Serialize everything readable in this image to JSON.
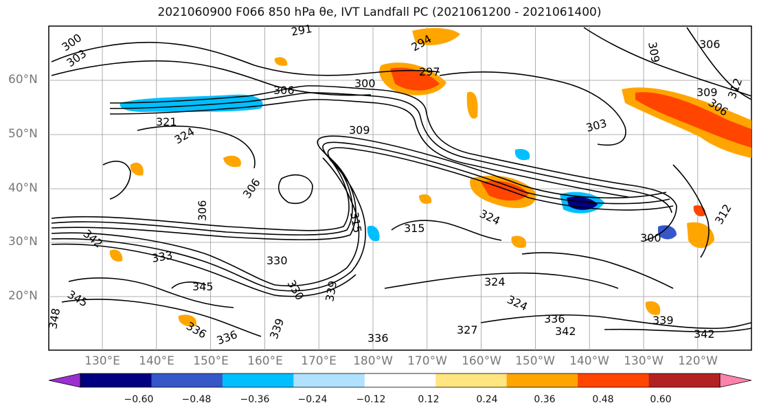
{
  "title": "2021060900 F066 850 hPa θe, IVT Landfall PC (2021061200 - 2021061400)",
  "axes": {
    "lat_labels": [
      "60°N",
      "50°N",
      "40°N",
      "30°N",
      "20°N"
    ],
    "lon_labels": [
      "130°E",
      "140°E",
      "150°E",
      "160°E",
      "170°E",
      "180°W",
      "170°W",
      "160°W",
      "150°W",
      "140°W",
      "130°W",
      "120°W"
    ]
  },
  "contour_labels": [
    "300",
    "303",
    "291",
    "294",
    "297",
    "300",
    "306",
    "309",
    "306",
    "303",
    "309",
    "312",
    "306",
    "321",
    "324",
    "315",
    "309",
    "306",
    "306",
    "342",
    "333",
    "330",
    "330",
    "315",
    "324",
    "345",
    "345",
    "348",
    "336",
    "339",
    "336",
    "336",
    "327",
    "324",
    "324",
    "336",
    "342",
    "339",
    "339",
    "342",
    "300",
    "312"
  ],
  "colorbar": {
    "colors": [
      "#9b30d0",
      "#000080",
      "#3557c8",
      "#00bfff",
      "#b0e2ff",
      "#ffffff",
      "#ffe680",
      "#ffa500",
      "#ff4500",
      "#b22222",
      "#ff82ab"
    ],
    "ticks": [
      "−0.60",
      "−0.48",
      "−0.36",
      "−0.24",
      "−0.12",
      "0.12",
      "0.24",
      "0.36",
      "0.48",
      "0.60"
    ]
  }
}
